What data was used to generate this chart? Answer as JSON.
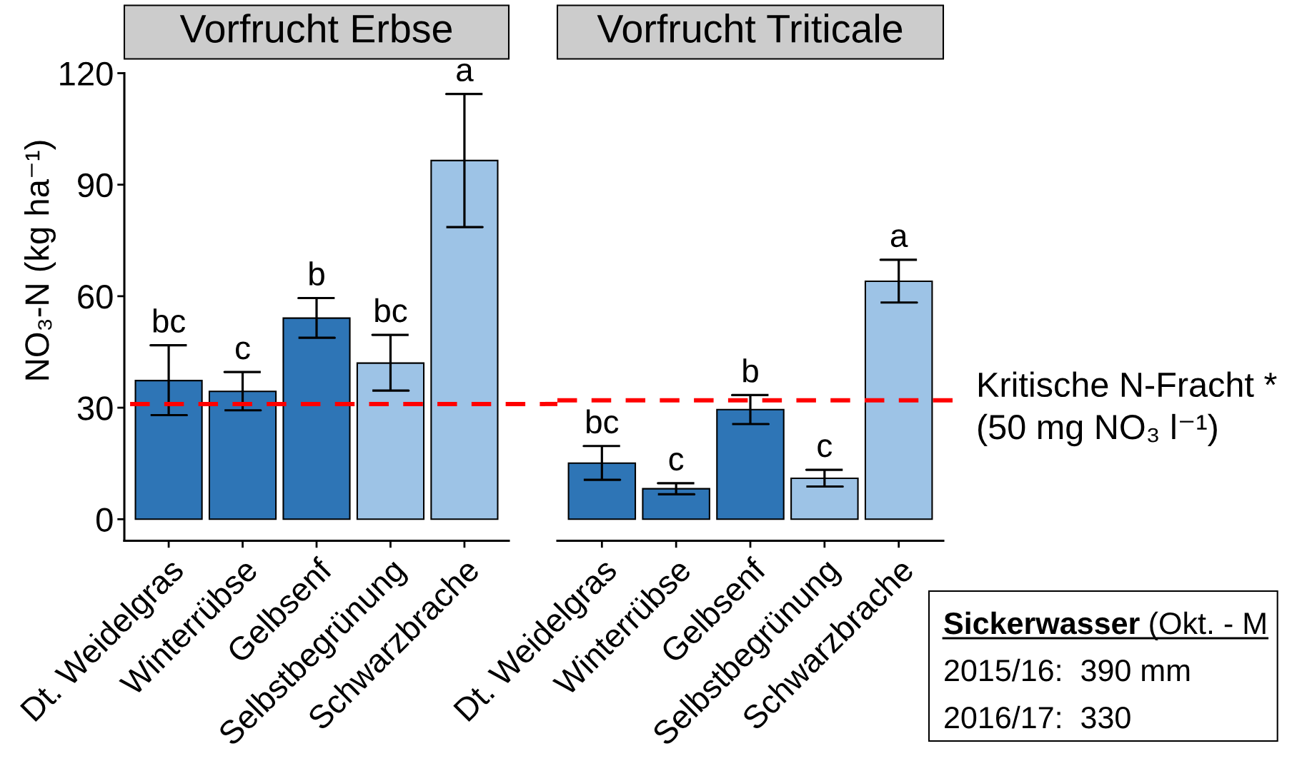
{
  "chart_data": [
    {
      "type": "bar",
      "title": "Vorfrucht Erbse",
      "ylabel": "NO₃-N (kg ha⁻¹)",
      "categories": [
        "Dt. Weidelgras",
        "Winterrübse",
        "Gelbsenf",
        "Selbstbegrünung",
        "Schwarzbrache"
      ],
      "values": [
        37.3,
        34.4,
        54.1,
        42.0,
        96.5
      ],
      "errors": [
        [
          28.0,
          46.8
        ],
        [
          29.3,
          39.6
        ],
        [
          48.8,
          59.5
        ],
        [
          34.6,
          49.6
        ],
        [
          78.6,
          114.4
        ]
      ],
      "value_labels": [
        "bc",
        "c",
        "b",
        "bc",
        "a"
      ],
      "colors": [
        "#2e75b6",
        "#2e75b6",
        "#2e75b6",
        "#9dc3e6",
        "#9dc3e6"
      ],
      "ylim": [
        -5.8,
        120
      ],
      "yticks": [
        0,
        30,
        60,
        90,
        120
      ],
      "ref_lines": [
        {
          "axis": "y",
          "value": 31,
          "color": "#ff0000",
          "line_style": "dashed"
        }
      ]
    },
    {
      "type": "bar",
      "title": "Vorfrucht Triticale",
      "categories": [
        "Dt. Weidelgras",
        "Winterrübse",
        "Gelbsenf",
        "Selbstbegrünung",
        "Schwarzbrache"
      ],
      "values": [
        15.1,
        8.2,
        29.5,
        11.0,
        64.0
      ],
      "errors": [
        [
          10.6,
          19.7
        ],
        [
          6.7,
          9.7
        ],
        [
          25.6,
          33.4
        ],
        [
          8.8,
          13.3
        ],
        [
          58.3,
          69.8
        ]
      ],
      "value_labels": [
        "bc",
        "c",
        "b",
        "c",
        "a"
      ],
      "colors": [
        "#2e75b6",
        "#2e75b6",
        "#2e75b6",
        "#9dc3e6",
        "#9dc3e6"
      ],
      "ylim": [
        -5.8,
        120
      ],
      "tick_labels": "x",
      "ref_lines": [
        {
          "axis": "y",
          "value": 32,
          "label": "Kritische N-Fracht *\n(50 mg NO₃ l⁻¹)",
          "color": "#ff0000",
          "line_style": "dashed"
        }
      ],
      "annotations": [
        "Sickerwasser (Okt. - M\n2015/16:  390 mm\n2016/17:  330"
      ]
    }
  ]
}
